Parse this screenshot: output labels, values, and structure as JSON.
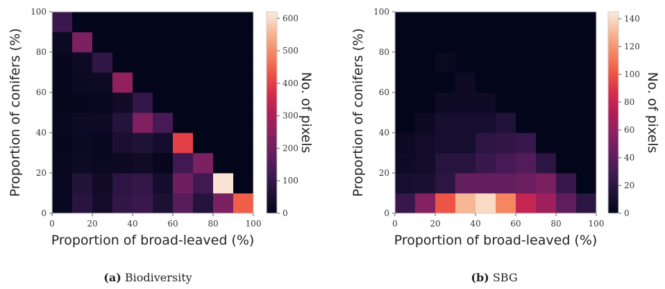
{
  "chart_data": [
    {
      "type": "heatmap",
      "caption_label": "(a)",
      "caption_text": "Biodiversity",
      "xlabel": "Proportion of broad-leaved (%)",
      "ylabel": "Proportion of conifers (%)",
      "xlim": [
        0,
        100
      ],
      "ylim": [
        0,
        100
      ],
      "xticks": [
        0,
        20,
        40,
        60,
        80,
        100
      ],
      "yticks": [
        0,
        20,
        40,
        60,
        80,
        100
      ],
      "colorbar_label": "No. of pixels",
      "colorbar_range": [
        0,
        620
      ],
      "colorbar_ticks": [
        0,
        100,
        200,
        300,
        400,
        500,
        600
      ],
      "bin_width": 10,
      "values": [
        [
          12,
          80,
          35,
          95,
          110,
          55,
          160,
          70,
          220,
          440
        ],
        [
          15,
          65,
          30,
          85,
          100,
          40,
          200,
          120,
          610,
          0
        ],
        [
          12,
          25,
          18,
          20,
          30,
          10,
          120,
          220,
          0,
          0
        ],
        [
          10,
          20,
          15,
          50,
          60,
          40,
          400,
          0,
          0,
          0
        ],
        [
          12,
          25,
          25,
          70,
          230,
          130,
          0,
          0,
          0,
          0
        ],
        [
          8,
          10,
          12,
          30,
          100,
          0,
          0,
          0,
          0,
          0
        ],
        [
          10,
          20,
          25,
          260,
          0,
          0,
          0,
          0,
          0,
          0
        ],
        [
          10,
          25,
          90,
          0,
          0,
          0,
          0,
          0,
          0,
          0
        ],
        [
          20,
          220,
          0,
          0,
          0,
          0,
          0,
          0,
          0,
          0
        ],
        [
          110,
          0,
          0,
          0,
          0,
          0,
          0,
          0,
          0,
          0
        ]
      ]
    },
    {
      "type": "heatmap",
      "caption_label": "(b)",
      "caption_text": "SBG",
      "xlabel": "Proportion of broad-leaved (%)",
      "ylabel": "Proportion of conifers (%)",
      "xlim": [
        0,
        100
      ],
      "ylim": [
        0,
        100
      ],
      "xticks": [
        0,
        20,
        40,
        60,
        80,
        100
      ],
      "yticks": [
        0,
        20,
        40,
        60,
        80,
        100
      ],
      "colorbar_label": "No. of pixels",
      "colorbar_range": [
        0,
        145
      ],
      "colorbar_ticks": [
        0,
        20,
        40,
        60,
        80,
        100,
        120,
        140
      ],
      "bin_width": 10,
      "values": [
        [
          25,
          55,
          100,
          130,
          140,
          115,
          80,
          65,
          40,
          20
        ],
        [
          10,
          12,
          20,
          42,
          42,
          42,
          45,
          50,
          25,
          0
        ],
        [
          6,
          8,
          18,
          18,
          25,
          30,
          35,
          20,
          0,
          0
        ],
        [
          5,
          8,
          10,
          10,
          20,
          22,
          25,
          0,
          0,
          0
        ],
        [
          0,
          5,
          10,
          10,
          10,
          15,
          0,
          0,
          0,
          0
        ],
        [
          0,
          0,
          6,
          6,
          6,
          0,
          0,
          0,
          0,
          0
        ],
        [
          0,
          0,
          0,
          6,
          0,
          0,
          0,
          0,
          0,
          0
        ],
        [
          0,
          0,
          4,
          0,
          0,
          0,
          0,
          0,
          0,
          0
        ],
        [
          0,
          0,
          0,
          0,
          0,
          0,
          0,
          0,
          0,
          0
        ],
        [
          0,
          0,
          0,
          0,
          0,
          0,
          0,
          0,
          0,
          0
        ]
      ]
    }
  ]
}
